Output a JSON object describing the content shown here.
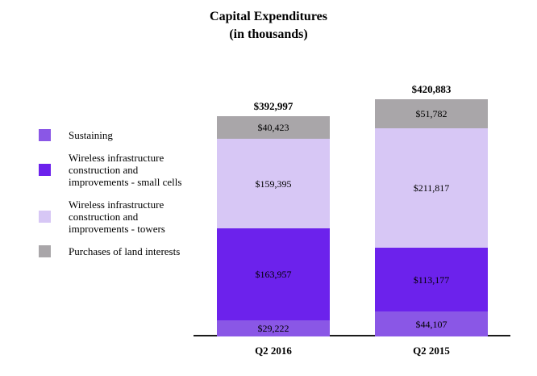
{
  "title": {
    "line1": "Capital Expenditures",
    "line2": "(in thousands)"
  },
  "chart_data": {
    "type": "bar",
    "subtype": "stacked-vertical",
    "unit": "thousands of US dollars",
    "categories": [
      "Q2 2016",
      "Q2 2015"
    ],
    "series": [
      {
        "key": "sustaining",
        "name": "Sustaining",
        "color": "#8A57E6",
        "values": [
          29222,
          44107
        ],
        "labels": [
          "$29,222",
          "$44,107"
        ]
      },
      {
        "key": "small-cells",
        "name": "Wireless infrastructure construction and improvements - small cells",
        "color": "#6C22EC",
        "values": [
          163957,
          113177
        ],
        "labels": [
          "$163,957",
          "$113,177"
        ]
      },
      {
        "key": "towers",
        "name": "Wireless infrastructure construction and improvements - towers",
        "color": "#D7C7F5",
        "values": [
          159395,
          211817
        ],
        "labels": [
          "$159,395",
          "$211,817"
        ]
      },
      {
        "key": "land-interests",
        "name": "Purchases of land interests",
        "color": "#A9A6A9",
        "values": [
          40423,
          51782
        ],
        "labels": [
          "$40,423",
          "$51,782"
        ]
      }
    ],
    "totals": {
      "values": [
        392997,
        420883
      ],
      "labels": [
        "$392,997",
        "$420,883"
      ]
    },
    "stack_order": "series listed bottom-to-top",
    "legend_position": "left",
    "grid": false,
    "text_color": "#000000",
    "axis_color": "#1a1a1a"
  }
}
